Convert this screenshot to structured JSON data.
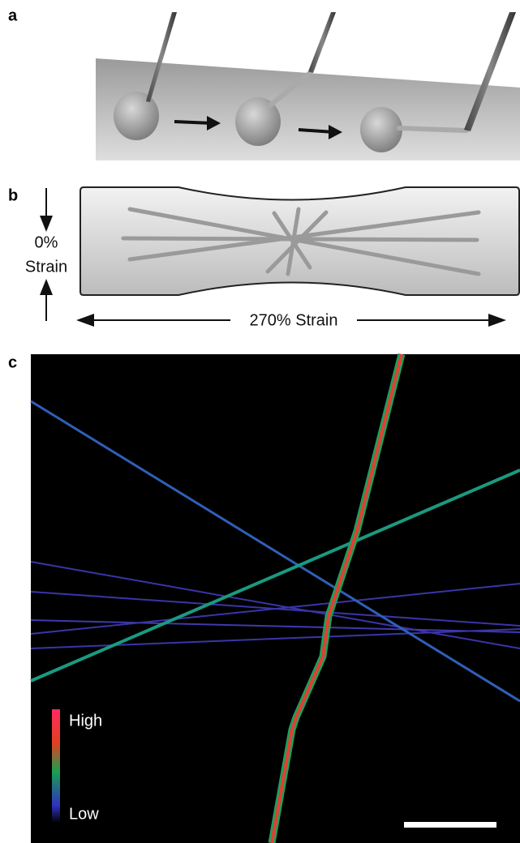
{
  "panels": [
    {
      "label": "a"
    },
    {
      "label": "b",
      "vertical_strain_top": "0%",
      "vertical_strain_bottom": "Strain",
      "horizontal_strain": "270% Strain"
    },
    {
      "label": "c",
      "colorbar_high": "High",
      "colorbar_low": "Low"
    }
  ]
}
